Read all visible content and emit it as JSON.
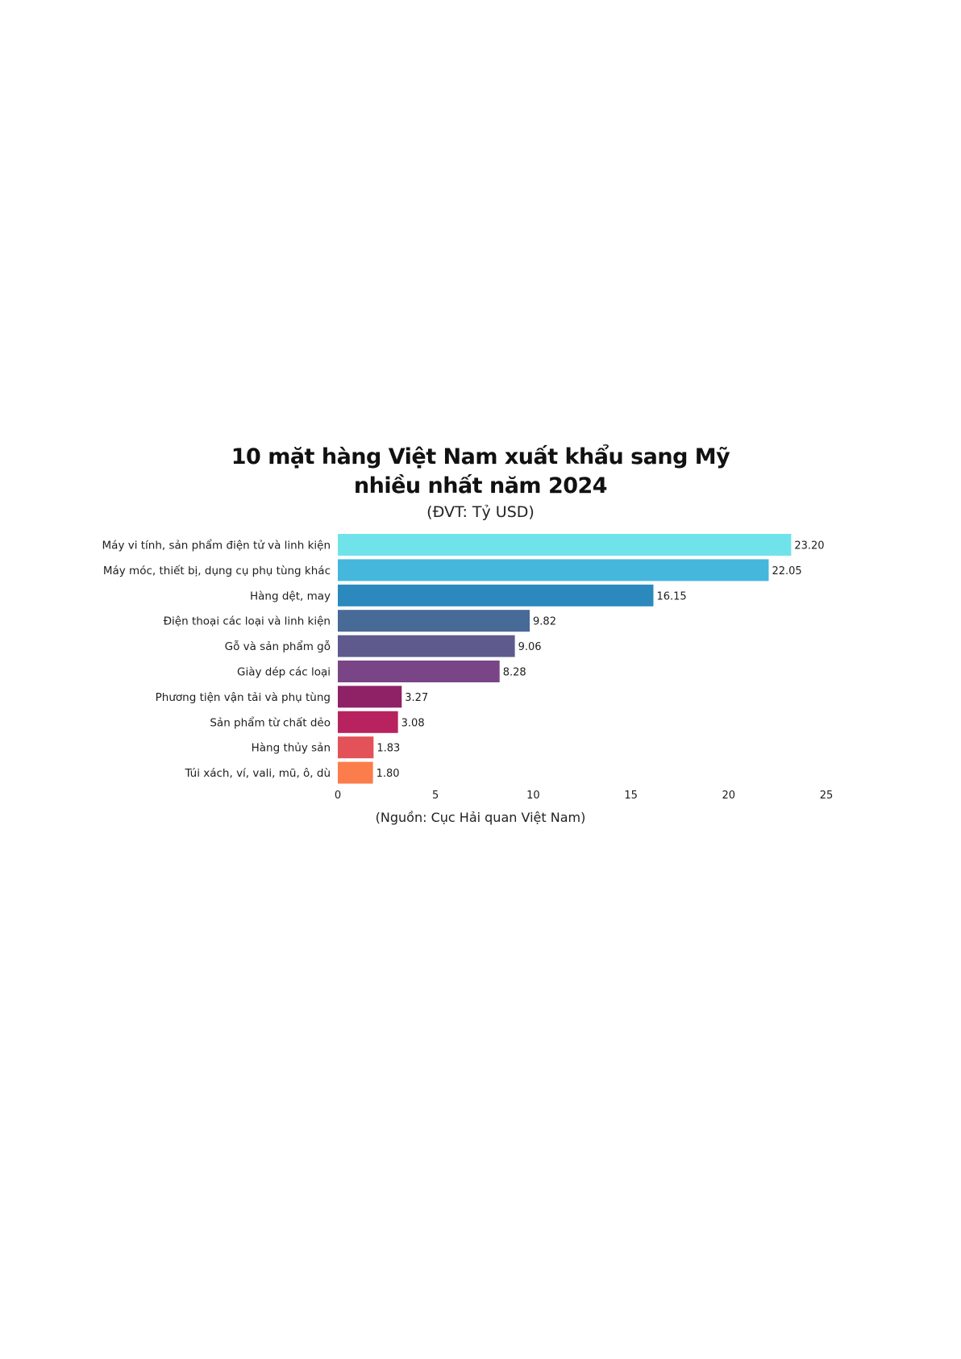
{
  "chart_data": {
    "type": "bar",
    "orientation": "horizontal",
    "title_line1": "10 mặt hàng Việt Nam xuất khẩu sang Mỹ",
    "title_line2": "nhiều nhất năm 2024",
    "subtitle": "(ĐVT: Tỷ USD)",
    "source": "(Nguồn: Cục Hải quan Việt Nam)",
    "categories": [
      "Máy vi tính, sản phẩm điện tử và linh kiện",
      "Máy móc, thiết bị, dụng cụ phụ tùng khác",
      "Hàng dệt, may",
      "Điện thoại các loại và linh kiện",
      "Gỗ và sản phẩm gỗ",
      "Giày dép các loại",
      "Phương tiện vận tải và phụ tùng",
      "Sản phẩm từ chất dẻo",
      "Hàng thủy sản",
      "Túi xách, ví, vali, mũ, ô, dù"
    ],
    "values": [
      23.2,
      22.05,
      16.15,
      9.82,
      9.06,
      8.28,
      3.27,
      3.08,
      1.83,
      1.8
    ],
    "value_labels": [
      "23.20",
      "22.05",
      "16.15",
      "9.82",
      "9.06",
      "8.28",
      "3.27",
      "3.08",
      "1.83",
      "1.80"
    ],
    "colors": [
      "#6fe3e9",
      "#45b7dc",
      "#2b89bd",
      "#476a96",
      "#5e5a8e",
      "#7a4586",
      "#8f2167",
      "#b8225f",
      "#e35259",
      "#fb7d4b"
    ],
    "xlim": [
      0,
      25
    ],
    "xticks": [
      0,
      5,
      10,
      15,
      20,
      25
    ],
    "grid": false,
    "legend": "none"
  }
}
